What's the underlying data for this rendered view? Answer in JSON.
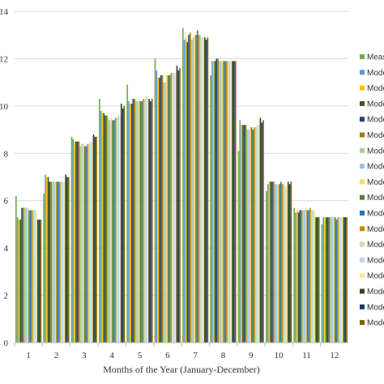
{
  "chart_data": {
    "type": "bar",
    "xlabel": "Months of the Year (January-December)",
    "ylabel": "",
    "ylim": [
      0,
      14
    ],
    "yticks": [
      "0",
      "2",
      "4",
      "6",
      "8",
      "10",
      "12",
      "14"
    ],
    "categories": [
      "1",
      "2",
      "3",
      "4",
      "5",
      "6",
      "7",
      "8",
      "9",
      "10",
      "11",
      "12"
    ],
    "grid": true,
    "legend_position": "right",
    "series": [
      {
        "name": "Meas",
        "color": "#70ad47",
        "values": [
          6.2,
          6.3,
          8.7,
          10.3,
          10.9,
          12.0,
          13.3,
          11.3,
          8.1,
          6.4,
          5.7,
          5.0
        ]
      },
      {
        "name": "Mode",
        "color": "#5b9bd5",
        "values": [
          5.3,
          7.1,
          8.6,
          9.8,
          10.2,
          11.5,
          12.8,
          11.9,
          9.4,
          6.7,
          5.5,
          5.3
        ]
      },
      {
        "name": "Mode",
        "color": "#ffc000",
        "values": [
          5.2,
          7.0,
          8.5,
          9.7,
          10.1,
          11.2,
          12.9,
          11.9,
          9.2,
          6.8,
          5.6,
          5.3
        ]
      },
      {
        "name": "Mode",
        "color": "#375623",
        "values": [
          5.2,
          7.0,
          8.5,
          9.7,
          10.1,
          11.2,
          12.7,
          11.9,
          9.2,
          6.8,
          5.5,
          5.3
        ]
      },
      {
        "name": "Mode",
        "color": "#264478",
        "values": [
          5.7,
          6.8,
          8.5,
          9.6,
          10.3,
          11.3,
          13.0,
          12.0,
          9.2,
          6.8,
          5.6,
          5.3
        ]
      },
      {
        "name": "Mode",
        "color": "#9e7c0c",
        "values": [
          5.7,
          6.8,
          8.5,
          9.6,
          10.3,
          11.3,
          13.1,
          12.0,
          9.2,
          6.8,
          5.6,
          5.3
        ]
      },
      {
        "name": "Mode",
        "color": "#a9d18e",
        "values": [
          5.7,
          6.8,
          8.3,
          9.5,
          10.2,
          11.0,
          12.8,
          11.9,
          9.0,
          6.7,
          5.6,
          5.3
        ]
      },
      {
        "name": "Mode",
        "color": "#9dc3e6",
        "values": [
          5.7,
          6.8,
          8.4,
          9.4,
          10.2,
          11.0,
          12.9,
          11.9,
          9.0,
          6.7,
          5.6,
          5.3
        ]
      },
      {
        "name": "Mode",
        "color": "#ffd966",
        "values": [
          5.7,
          6.8,
          8.4,
          9.5,
          10.3,
          11.3,
          13.0,
          11.9,
          9.1,
          6.7,
          5.7,
          5.3
        ]
      },
      {
        "name": "Mode",
        "color": "#548235",
        "values": [
          5.6,
          6.8,
          8.3,
          9.4,
          10.2,
          11.3,
          13.0,
          11.9,
          9.1,
          6.7,
          5.6,
          5.3
        ]
      },
      {
        "name": "Mode",
        "color": "#2e75b6",
        "values": [
          5.6,
          6.8,
          8.3,
          9.4,
          10.2,
          11.3,
          13.2,
          11.9,
          9.0,
          6.8,
          5.6,
          5.2
        ]
      },
      {
        "name": "Mode",
        "color": "#bf9000",
        "values": [
          5.6,
          6.8,
          8.4,
          9.5,
          10.3,
          11.4,
          13.0,
          11.9,
          9.1,
          6.7,
          5.7,
          5.3
        ]
      },
      {
        "name": "Mode",
        "color": "#c5e0b4",
        "values": [
          5.6,
          6.8,
          8.4,
          9.5,
          10.3,
          11.4,
          13.0,
          11.9,
          9.1,
          6.7,
          5.6,
          5.3
        ]
      },
      {
        "name": "Mode",
        "color": "#bdd7ee",
        "values": [
          5.6,
          6.8,
          8.5,
          9.6,
          10.4,
          11.4,
          12.9,
          11.9,
          9.2,
          6.6,
          5.6,
          5.3
        ]
      },
      {
        "name": "Mode",
        "color": "#ffe699",
        "values": [
          5.6,
          6.8,
          8.5,
          9.6,
          10.4,
          11.4,
          12.9,
          11.9,
          9.2,
          6.6,
          5.6,
          5.3
        ]
      },
      {
        "name": "Mode",
        "color": "#2d4a1a",
        "values": [
          5.2,
          7.1,
          8.8,
          10.1,
          10.3,
          11.7,
          12.9,
          11.9,
          9.5,
          6.8,
          5.3,
          5.3
        ]
      },
      {
        "name": "Mode",
        "color": "#1f3864",
        "values": [
          5.2,
          7.0,
          8.7,
          9.9,
          10.2,
          11.5,
          12.8,
          11.9,
          9.3,
          6.7,
          5.3,
          5.3
        ]
      },
      {
        "name": "Mode",
        "color": "#7f6000",
        "values": [
          5.2,
          7.0,
          8.7,
          10.0,
          10.3,
          11.6,
          12.9,
          11.9,
          9.4,
          6.8,
          5.3,
          5.3
        ]
      }
    ]
  }
}
